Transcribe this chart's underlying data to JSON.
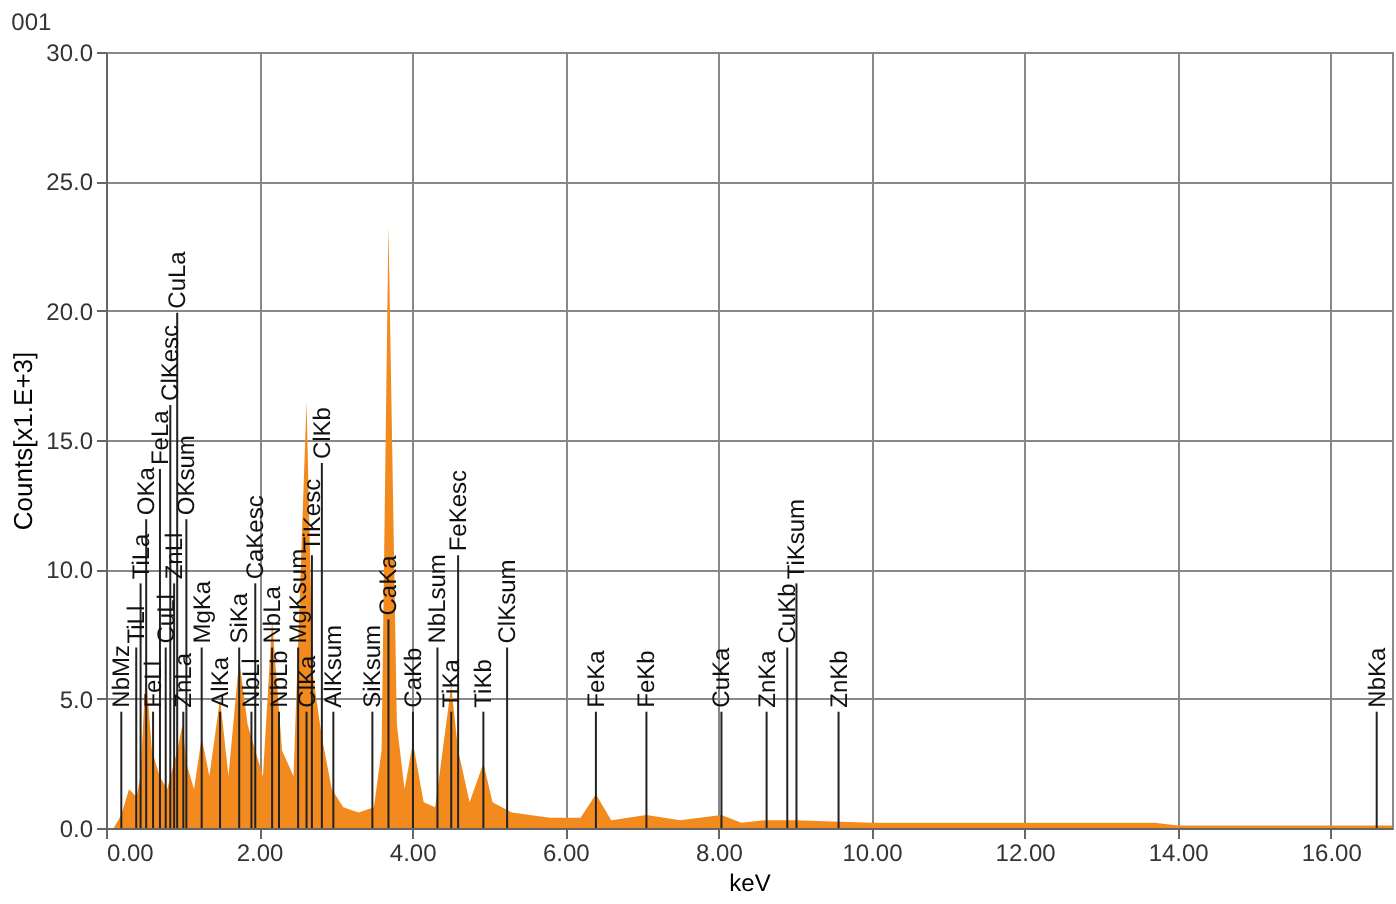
{
  "chart_data": {
    "type": "area",
    "title": "001",
    "xlabel": "keV",
    "ylabel": "Counts[x1.E+3]",
    "x": [
      0,
      0.1,
      0.2,
      0.3,
      0.4,
      0.45,
      0.52,
      0.6,
      0.7,
      0.8,
      0.93,
      1.0,
      1.05,
      1.15,
      1.25,
      1.35,
      1.49,
      1.6,
      1.74,
      1.85,
      1.95,
      2.05,
      2.17,
      2.3,
      2.45,
      2.62,
      2.7,
      2.82,
      2.95,
      3.1,
      3.3,
      3.5,
      3.6,
      3.69,
      3.8,
      3.9,
      4.01,
      4.15,
      4.3,
      4.51,
      4.6,
      4.75,
      4.93,
      5.05,
      5.3,
      5.8,
      6.2,
      6.4,
      6.6,
      7.06,
      7.5,
      8.04,
      8.3,
      8.6,
      9.0,
      10.0,
      12.0,
      13.0,
      13.7,
      14.0,
      16.8
    ],
    "series": [
      {
        "color": "#f28a1e",
        "values": [
          0,
          0,
          0.5,
          1.5,
          1.2,
          2,
          6,
          3,
          2,
          1.5,
          3,
          4,
          2.5,
          1.5,
          3.5,
          2,
          5,
          2,
          6.5,
          4,
          3,
          2,
          8,
          3,
          2,
          16.5,
          6,
          3.5,
          1.5,
          0.8,
          0.6,
          0.8,
          3,
          23.3,
          4,
          1.5,
          3.3,
          1,
          0.8,
          5.5,
          3,
          1,
          2.5,
          1,
          0.6,
          0.4,
          0.4,
          1.3,
          0.3,
          0.5,
          0.3,
          0.5,
          0.2,
          0.3,
          0.3,
          0.2,
          0.2,
          0.2,
          0.2,
          0.1,
          0.1
        ]
      }
    ],
    "xlim": [
      0,
      16.8
    ],
    "ylim": [
      0,
      30
    ],
    "xticks": [
      {
        "value": 0,
        "label": "0.00"
      },
      {
        "value": 2,
        "label": "2.00"
      },
      {
        "value": 4,
        "label": "4.00"
      },
      {
        "value": 6,
        "label": "6.00"
      },
      {
        "value": 8,
        "label": "8.00"
      },
      {
        "value": 10,
        "label": "10.00"
      },
      {
        "value": 12,
        "label": "12.00"
      },
      {
        "value": 14,
        "label": "14.00"
      },
      {
        "value": 16,
        "label": "16.00"
      }
    ],
    "yticks": [
      {
        "value": 0,
        "label": "0.0"
      },
      {
        "value": 5,
        "label": "5.0"
      },
      {
        "value": 10,
        "label": "10.0"
      },
      {
        "value": 15,
        "label": "15.0"
      },
      {
        "value": 20,
        "label": "20.0"
      },
      {
        "value": 25,
        "label": "25.0"
      },
      {
        "value": 30,
        "label": "30.0"
      }
    ],
    "grid": true,
    "ref_lines": [
      {
        "axis": "x",
        "value": 0.2,
        "label": "NbMz"
      },
      {
        "axis": "x",
        "value": 0.395,
        "label": "TiLl"
      },
      {
        "axis": "x",
        "value": 0.452,
        "label": "TiLa"
      },
      {
        "axis": "x",
        "value": 0.525,
        "label": "OKa"
      },
      {
        "axis": "x",
        "value": 0.615,
        "label": "FeLl"
      },
      {
        "axis": "x",
        "value": 0.705,
        "label": "FeLa"
      },
      {
        "axis": "x",
        "value": 0.78,
        "label": "CuLl"
      },
      {
        "axis": "x",
        "value": 0.84,
        "label": "ClKesc"
      },
      {
        "axis": "x",
        "value": 0.89,
        "label": "ZnLl"
      },
      {
        "axis": "x",
        "value": 0.93,
        "label": "CuLa"
      },
      {
        "axis": "x",
        "value": 1.01,
        "label": "ZnLa"
      },
      {
        "axis": "x",
        "value": 1.05,
        "label": "OKsum"
      },
      {
        "axis": "x",
        "value": 1.25,
        "label": "MgKa"
      },
      {
        "axis": "x",
        "value": 1.49,
        "label": "AlKa"
      },
      {
        "axis": "x",
        "value": 1.74,
        "label": "SiKa"
      },
      {
        "axis": "x",
        "value": 1.9,
        "label": "NbLl"
      },
      {
        "axis": "x",
        "value": 1.95,
        "label": "CaKesc"
      },
      {
        "axis": "x",
        "value": 2.17,
        "label": "NbLa"
      },
      {
        "axis": "x",
        "value": 2.26,
        "label": "NbLb"
      },
      {
        "axis": "x",
        "value": 2.51,
        "label": "MgKsum"
      },
      {
        "axis": "x",
        "value": 2.62,
        "label": "ClKa"
      },
      {
        "axis": "x",
        "value": 2.69,
        "label": "TiKesc"
      },
      {
        "axis": "x",
        "value": 2.82,
        "label": "ClKb"
      },
      {
        "axis": "x",
        "value": 2.97,
        "label": "AlKsum"
      },
      {
        "axis": "x",
        "value": 3.48,
        "label": "SiKsum"
      },
      {
        "axis": "x",
        "value": 3.69,
        "label": "CaKa"
      },
      {
        "axis": "x",
        "value": 4.01,
        "label": "CaKb"
      },
      {
        "axis": "x",
        "value": 4.33,
        "label": "NbLsum"
      },
      {
        "axis": "x",
        "value": 4.51,
        "label": "TiKa"
      },
      {
        "axis": "x",
        "value": 4.6,
        "label": "FeKesc"
      },
      {
        "axis": "x",
        "value": 4.93,
        "label": "TiKb"
      },
      {
        "axis": "x",
        "value": 5.24,
        "label": "ClKsum"
      },
      {
        "axis": "x",
        "value": 6.4,
        "label": "FeKa"
      },
      {
        "axis": "x",
        "value": 7.06,
        "label": "FeKb"
      },
      {
        "axis": "x",
        "value": 8.04,
        "label": "CuKa"
      },
      {
        "axis": "x",
        "value": 8.63,
        "label": "ZnKa"
      },
      {
        "axis": "x",
        "value": 8.9,
        "label": "CuKb"
      },
      {
        "axis": "x",
        "value": 9.02,
        "label": "TiKsum"
      },
      {
        "axis": "x",
        "value": 9.57,
        "label": "ZnKb"
      },
      {
        "axis": "x",
        "value": 16.6,
        "label": "NbKa"
      }
    ]
  }
}
